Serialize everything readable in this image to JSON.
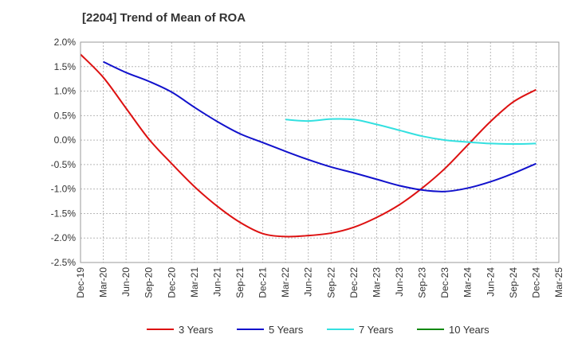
{
  "chart_data": {
    "type": "line",
    "title": "[2204]  Trend of Mean of ROA",
    "xlabel": "",
    "ylabel": "",
    "ylim": [
      -2.5,
      2.0
    ],
    "y_ticks": [
      "2.0%",
      "1.5%",
      "1.0%",
      "0.5%",
      "0.0%",
      "-0.5%",
      "-1.0%",
      "-1.5%",
      "-2.0%",
      "-2.5%"
    ],
    "y_tick_values": [
      2.0,
      1.5,
      1.0,
      0.5,
      0.0,
      -0.5,
      -1.0,
      -1.5,
      -2.0,
      -2.5
    ],
    "categories": [
      "Dec-19",
      "Mar-20",
      "Jun-20",
      "Sep-20",
      "Dec-20",
      "Mar-21",
      "Jun-21",
      "Sep-21",
      "Dec-21",
      "Mar-22",
      "Jun-22",
      "Sep-22",
      "Dec-22",
      "Mar-23",
      "Jun-23",
      "Sep-23",
      "Dec-23",
      "Mar-24",
      "Jun-24",
      "Sep-24",
      "Dec-24",
      "Mar-25"
    ],
    "grid": true,
    "legend_position": "bottom",
    "series": [
      {
        "name": "3 Years",
        "color": "#dd1111",
        "values": [
          1.75,
          1.28,
          0.65,
          0.02,
          -0.48,
          -0.95,
          -1.35,
          -1.68,
          -1.91,
          -1.97,
          -1.95,
          -1.9,
          -1.78,
          -1.58,
          -1.32,
          -0.98,
          -0.58,
          -0.1,
          0.38,
          0.78,
          1.03,
          null
        ]
      },
      {
        "name": "5 Years",
        "color": "#1111cc",
        "values": [
          null,
          1.6,
          1.38,
          1.2,
          0.98,
          0.67,
          0.38,
          0.13,
          -0.05,
          -0.23,
          -0.4,
          -0.55,
          -0.67,
          -0.8,
          -0.93,
          -1.02,
          -1.05,
          -0.98,
          -0.85,
          -0.68,
          -0.48,
          null
        ]
      },
      {
        "name": "7 Years",
        "color": "#33e0e0",
        "values": [
          null,
          null,
          null,
          null,
          null,
          null,
          null,
          null,
          null,
          0.42,
          0.39,
          0.43,
          0.42,
          0.32,
          0.2,
          0.08,
          0.0,
          -0.04,
          -0.07,
          -0.08,
          -0.07,
          null
        ]
      },
      {
        "name": "10 Years",
        "color": "#118811",
        "values": [
          null,
          null,
          null,
          null,
          null,
          null,
          null,
          null,
          null,
          null,
          null,
          null,
          null,
          null,
          null,
          null,
          null,
          null,
          null,
          null,
          null,
          null
        ]
      }
    ]
  }
}
